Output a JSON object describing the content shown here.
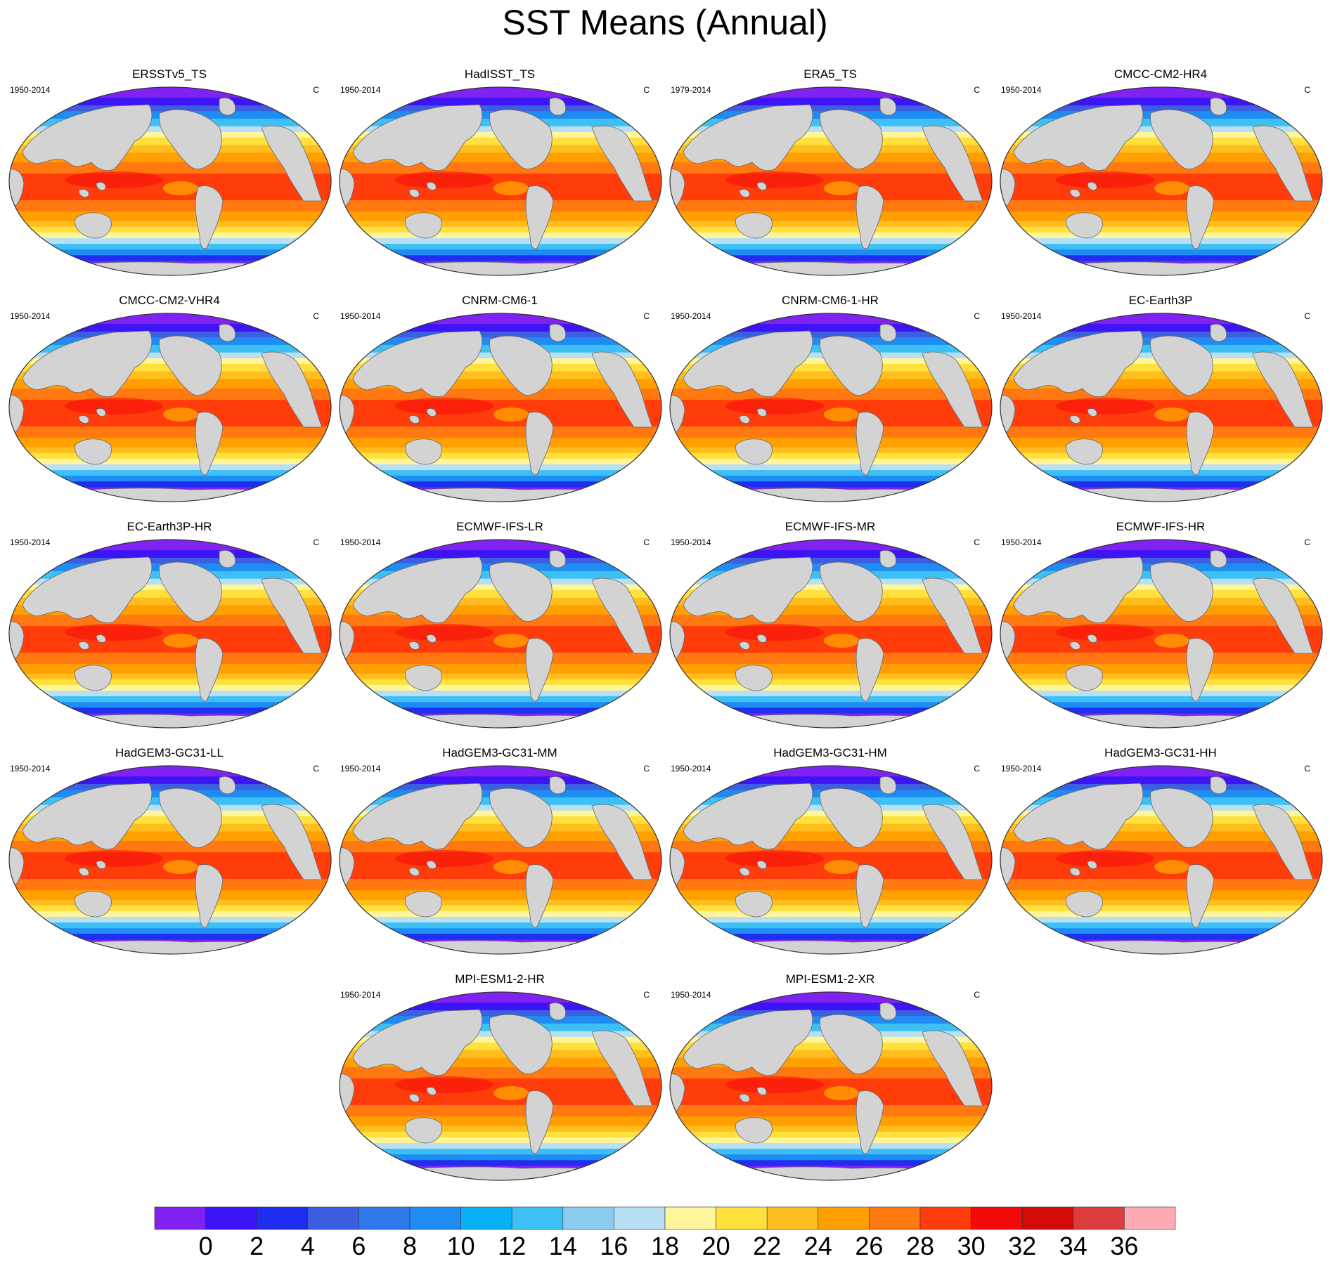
{
  "title": "SST Means (Annual)",
  "units": "C",
  "panels": [
    {
      "name": "ERSSTv5_TS",
      "period": "1950-2014"
    },
    {
      "name": "HadISST_TS",
      "period": "1950-2014"
    },
    {
      "name": "ERA5_TS",
      "period": "1979-2014"
    },
    {
      "name": "CMCC-CM2-HR4",
      "period": "1950-2014"
    },
    {
      "name": "CMCC-CM2-VHR4",
      "period": "1950-2014"
    },
    {
      "name": "CNRM-CM6-1",
      "period": "1950-2014"
    },
    {
      "name": "CNRM-CM6-1-HR",
      "period": "1950-2014"
    },
    {
      "name": "EC-Earth3P",
      "period": "1950-2014"
    },
    {
      "name": "EC-Earth3P-HR",
      "period": "1950-2014"
    },
    {
      "name": "ECMWF-IFS-LR",
      "period": "1950-2014"
    },
    {
      "name": "ECMWF-IFS-MR",
      "period": "1950-2014"
    },
    {
      "name": "ECMWF-IFS-HR",
      "period": "1950-2014"
    },
    {
      "name": "HadGEM3-GC31-LL",
      "period": "1950-2014"
    },
    {
      "name": "HadGEM3-GC31-MM",
      "period": "1950-2014"
    },
    {
      "name": "HadGEM3-GC31-HM",
      "period": "1950-2014"
    },
    {
      "name": "HadGEM3-GC31-HH",
      "period": "1950-2014"
    },
    {
      "name": "MPI-ESM1-2-HR",
      "period": "1950-2014"
    },
    {
      "name": "MPI-ESM1-2-XR",
      "period": "1950-2014"
    }
  ],
  "colorbar": {
    "levels": [
      "0",
      "2",
      "4",
      "6",
      "8",
      "10",
      "12",
      "14",
      "16",
      "18",
      "20",
      "22",
      "24",
      "26",
      "28",
      "30",
      "32",
      "34",
      "36"
    ],
    "colors": [
      "#7f22f2",
      "#3c14f5",
      "#1f2ef0",
      "#3c5ee0",
      "#2f78ea",
      "#1e8cf2",
      "#0ab0f7",
      "#3cc0f5",
      "#8ccbf0",
      "#b9dff5",
      "#fff59a",
      "#ffe03c",
      "#ffbe1e",
      "#ffa000",
      "#ff7810",
      "#ff3c0a",
      "#f50a0a",
      "#d20a0a",
      "#dc3c3c",
      "#ffaab4"
    ]
  },
  "land_color": "#d3d3d3"
}
